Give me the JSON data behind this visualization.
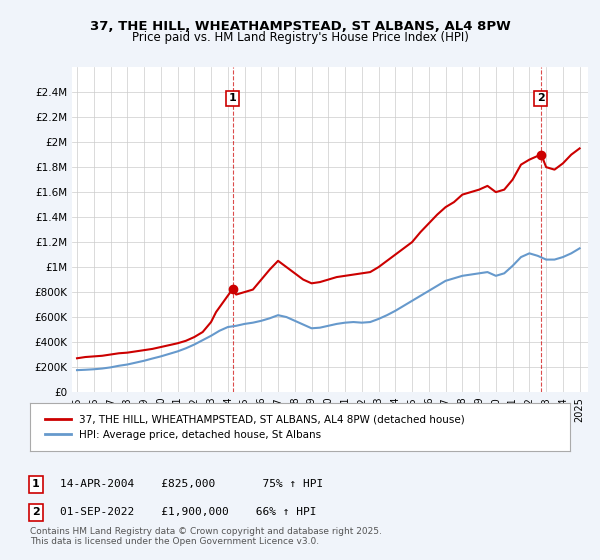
{
  "title_line1": "37, THE HILL, WHEATHAMPSTEAD, ST ALBANS, AL4 8PW",
  "title_line2": "Price paid vs. HM Land Registry's House Price Index (HPI)",
  "bg_color": "#f0f4fa",
  "plot_bg_color": "#ffffff",
  "red_color": "#cc0000",
  "blue_color": "#6699cc",
  "marker1_year": 2004.29,
  "marker2_year": 2022.67,
  "annotation1_label": "1",
  "annotation2_label": "2",
  "annotation1_text": "14-APR-2004    £825,000       75% ↑ HPI",
  "annotation2_text": "01-SEP-2022    £1,900,000    66% ↑ HPI",
  "legend_line1": "37, THE HILL, WHEATHAMPSTEAD, ST ALBANS, AL4 8PW (detached house)",
  "legend_line2": "HPI: Average price, detached house, St Albans",
  "footer_text": "Contains HM Land Registry data © Crown copyright and database right 2025.\nThis data is licensed under the Open Government Licence v3.0.",
  "ylim": [
    0,
    2600000
  ],
  "yticks": [
    0,
    200000,
    400000,
    600000,
    800000,
    1000000,
    1200000,
    1400000,
    1600000,
    1800000,
    2000000,
    2200000,
    2400000
  ],
  "ytick_labels": [
    "£0",
    "£200K",
    "£400K",
    "£600K",
    "£800K",
    "£1M",
    "£1.2M",
    "£1.4M",
    "£1.6M",
    "£1.8M",
    "£2M",
    "£2.2M",
    "£2.4M"
  ],
  "xlim_start": 1995,
  "xlim_end": 2026,
  "xticks": [
    1995,
    1996,
    1997,
    1998,
    1999,
    2000,
    2001,
    2002,
    2003,
    2004,
    2005,
    2006,
    2007,
    2008,
    2009,
    2010,
    2011,
    2012,
    2013,
    2014,
    2015,
    2016,
    2017,
    2018,
    2019,
    2020,
    2021,
    2022,
    2023,
    2024,
    2025
  ],
  "red_x": [
    1995.0,
    1995.5,
    1996.0,
    1996.5,
    1997.0,
    1997.5,
    1998.0,
    1998.5,
    1999.0,
    1999.5,
    2000.0,
    2000.5,
    2001.0,
    2001.5,
    2002.0,
    2002.5,
    2003.0,
    2003.3,
    2004.29,
    2004.5,
    2005.0,
    2005.5,
    2006.0,
    2006.5,
    2007.0,
    2007.5,
    2008.0,
    2008.5,
    2009.0,
    2009.5,
    2010.0,
    2010.5,
    2011.0,
    2011.5,
    2012.0,
    2012.5,
    2013.0,
    2013.5,
    2014.0,
    2014.5,
    2015.0,
    2015.5,
    2016.0,
    2016.5,
    2017.0,
    2017.5,
    2018.0,
    2018.5,
    2019.0,
    2019.5,
    2020.0,
    2020.5,
    2021.0,
    2021.5,
    2022.0,
    2022.67,
    2022.8,
    2023.0,
    2023.5,
    2024.0,
    2024.5,
    2025.0
  ],
  "red_y": [
    270000,
    280000,
    285000,
    290000,
    300000,
    310000,
    315000,
    325000,
    335000,
    345000,
    360000,
    375000,
    390000,
    410000,
    440000,
    480000,
    560000,
    640000,
    825000,
    780000,
    800000,
    820000,
    900000,
    980000,
    1050000,
    1000000,
    950000,
    900000,
    870000,
    880000,
    900000,
    920000,
    930000,
    940000,
    950000,
    960000,
    1000000,
    1050000,
    1100000,
    1150000,
    1200000,
    1280000,
    1350000,
    1420000,
    1480000,
    1520000,
    1580000,
    1600000,
    1620000,
    1650000,
    1600000,
    1620000,
    1700000,
    1820000,
    1860000,
    1900000,
    1870000,
    1800000,
    1780000,
    1830000,
    1900000,
    1950000
  ],
  "blue_x": [
    1995.0,
    1995.5,
    1996.0,
    1996.5,
    1997.0,
    1997.5,
    1998.0,
    1998.5,
    1999.0,
    1999.5,
    2000.0,
    2000.5,
    2001.0,
    2001.5,
    2002.0,
    2002.5,
    2003.0,
    2003.5,
    2004.0,
    2004.5,
    2005.0,
    2005.5,
    2006.0,
    2006.5,
    2007.0,
    2007.5,
    2008.0,
    2008.5,
    2009.0,
    2009.5,
    2010.0,
    2010.5,
    2011.0,
    2011.5,
    2012.0,
    2012.5,
    2013.0,
    2013.5,
    2014.0,
    2014.5,
    2015.0,
    2015.5,
    2016.0,
    2016.5,
    2017.0,
    2017.5,
    2018.0,
    2018.5,
    2019.0,
    2019.5,
    2020.0,
    2020.5,
    2021.0,
    2021.5,
    2022.0,
    2022.5,
    2023.0,
    2023.5,
    2024.0,
    2024.5,
    2025.0
  ],
  "blue_y": [
    175000,
    178000,
    182000,
    188000,
    197000,
    210000,
    220000,
    235000,
    250000,
    268000,
    285000,
    305000,
    325000,
    350000,
    380000,
    415000,
    450000,
    490000,
    520000,
    530000,
    545000,
    555000,
    570000,
    590000,
    615000,
    600000,
    570000,
    540000,
    510000,
    515000,
    530000,
    545000,
    555000,
    560000,
    555000,
    560000,
    585000,
    615000,
    650000,
    690000,
    730000,
    770000,
    810000,
    850000,
    890000,
    910000,
    930000,
    940000,
    950000,
    960000,
    930000,
    950000,
    1010000,
    1080000,
    1110000,
    1090000,
    1060000,
    1060000,
    1080000,
    1110000,
    1150000
  ]
}
